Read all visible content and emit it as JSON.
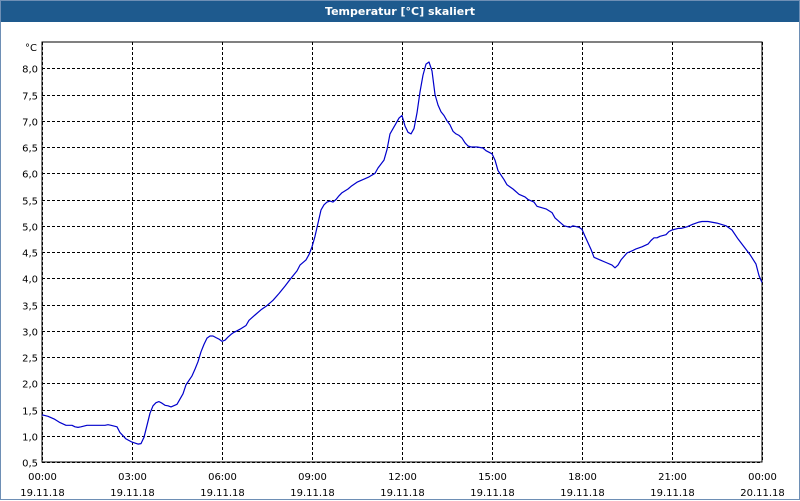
{
  "window": {
    "title": "Temperatur [°C] skaliert"
  },
  "chart_data": {
    "type": "line",
    "title": "Temperatur [°C] skaliert",
    "y_unit": "°C",
    "xlim": [
      0,
      24
    ],
    "ylim": [
      0.5,
      8.5
    ],
    "grid": true,
    "x_ticks": [
      {
        "t": 0,
        "time": "00:00",
        "date": "19.11.18"
      },
      {
        "t": 3,
        "time": "03:00",
        "date": "19.11.18"
      },
      {
        "t": 6,
        "time": "06:00",
        "date": "19.11.18"
      },
      {
        "t": 9,
        "time": "09:00",
        "date": "19.11.18"
      },
      {
        "t": 12,
        "time": "12:00",
        "date": "19.11.18"
      },
      {
        "t": 15,
        "time": "15:00",
        "date": "19.11.18"
      },
      {
        "t": 18,
        "time": "18:00",
        "date": "19.11.18"
      },
      {
        "t": 21,
        "time": "21:00",
        "date": "19.11.18"
      },
      {
        "t": 24,
        "time": "00:00",
        "date": "20.11.18"
      }
    ],
    "y_ticks": [
      {
        "v": 0.5,
        "label": "0,5"
      },
      {
        "v": 1.0,
        "label": "1,0"
      },
      {
        "v": 1.5,
        "label": "1,5"
      },
      {
        "v": 2.0,
        "label": "2,0"
      },
      {
        "v": 2.5,
        "label": "2,5"
      },
      {
        "v": 3.0,
        "label": "3,0"
      },
      {
        "v": 3.5,
        "label": "3,5"
      },
      {
        "v": 4.0,
        "label": "4,0"
      },
      {
        "v": 4.5,
        "label": "4,5"
      },
      {
        "v": 5.0,
        "label": "5,0"
      },
      {
        "v": 5.5,
        "label": "5,5"
      },
      {
        "v": 6.0,
        "label": "6,0"
      },
      {
        "v": 6.5,
        "label": "6,5"
      },
      {
        "v": 7.0,
        "label": "7,0"
      },
      {
        "v": 7.5,
        "label": "7,5"
      },
      {
        "v": 8.0,
        "label": "8,0"
      }
    ],
    "series": [
      {
        "color": "#0000cc",
        "points": [
          [
            0.0,
            1.4
          ],
          [
            0.2,
            1.37
          ],
          [
            0.4,
            1.32
          ],
          [
            0.6,
            1.25
          ],
          [
            0.8,
            1.2
          ],
          [
            1.0,
            1.2
          ],
          [
            1.1,
            1.17
          ],
          [
            1.2,
            1.16
          ],
          [
            1.3,
            1.17
          ],
          [
            1.5,
            1.2
          ],
          [
            1.7,
            1.2
          ],
          [
            1.9,
            1.2
          ],
          [
            2.1,
            1.2
          ],
          [
            2.2,
            1.21
          ],
          [
            2.3,
            1.2
          ],
          [
            2.5,
            1.17
          ],
          [
            2.6,
            1.06
          ],
          [
            2.8,
            0.94
          ],
          [
            3.0,
            0.88
          ],
          [
            3.2,
            0.84
          ],
          [
            3.3,
            0.85
          ],
          [
            3.4,
            0.97
          ],
          [
            3.5,
            1.2
          ],
          [
            3.6,
            1.43
          ],
          [
            3.7,
            1.57
          ],
          [
            3.8,
            1.63
          ],
          [
            3.9,
            1.65
          ],
          [
            4.0,
            1.62
          ],
          [
            4.1,
            1.58
          ],
          [
            4.2,
            1.57
          ],
          [
            4.3,
            1.55
          ],
          [
            4.5,
            1.6
          ],
          [
            4.7,
            1.8
          ],
          [
            4.8,
            1.97
          ],
          [
            5.0,
            2.14
          ],
          [
            5.1,
            2.27
          ],
          [
            5.2,
            2.41
          ],
          [
            5.3,
            2.6
          ],
          [
            5.4,
            2.74
          ],
          [
            5.5,
            2.86
          ],
          [
            5.6,
            2.9
          ],
          [
            5.7,
            2.9
          ],
          [
            5.8,
            2.87
          ],
          [
            5.9,
            2.84
          ],
          [
            6.0,
            2.8
          ],
          [
            6.1,
            2.82
          ],
          [
            6.2,
            2.88
          ],
          [
            6.3,
            2.93
          ],
          [
            6.4,
            2.97
          ],
          [
            6.5,
            3.0
          ],
          [
            6.6,
            3.03
          ],
          [
            6.8,
            3.1
          ],
          [
            6.9,
            3.2
          ],
          [
            7.1,
            3.3
          ],
          [
            7.3,
            3.4
          ],
          [
            7.5,
            3.48
          ],
          [
            7.7,
            3.58
          ],
          [
            7.9,
            3.71
          ],
          [
            8.1,
            3.85
          ],
          [
            8.3,
            4.0
          ],
          [
            8.5,
            4.14
          ],
          [
            8.6,
            4.25
          ],
          [
            8.8,
            4.35
          ],
          [
            8.9,
            4.45
          ],
          [
            9.0,
            4.6
          ],
          [
            9.1,
            4.8
          ],
          [
            9.2,
            5.05
          ],
          [
            9.3,
            5.3
          ],
          [
            9.4,
            5.4
          ],
          [
            9.5,
            5.45
          ],
          [
            9.6,
            5.47
          ],
          [
            9.7,
            5.45
          ],
          [
            9.8,
            5.5
          ],
          [
            9.9,
            5.57
          ],
          [
            10.0,
            5.63
          ],
          [
            10.2,
            5.7
          ],
          [
            10.3,
            5.75
          ],
          [
            10.5,
            5.83
          ],
          [
            10.7,
            5.88
          ],
          [
            10.9,
            5.93
          ],
          [
            11.1,
            6.0
          ],
          [
            11.2,
            6.1
          ],
          [
            11.4,
            6.25
          ],
          [
            11.5,
            6.45
          ],
          [
            11.6,
            6.75
          ],
          [
            11.8,
            6.95
          ],
          [
            11.9,
            7.05
          ],
          [
            12.0,
            7.1
          ],
          [
            12.1,
            6.9
          ],
          [
            12.2,
            6.78
          ],
          [
            12.3,
            6.75
          ],
          [
            12.4,
            6.85
          ],
          [
            12.5,
            7.15
          ],
          [
            12.6,
            7.55
          ],
          [
            12.7,
            7.87
          ],
          [
            12.8,
            8.08
          ],
          [
            12.9,
            8.12
          ],
          [
            13.0,
            7.95
          ],
          [
            13.1,
            7.5
          ],
          [
            13.2,
            7.3
          ],
          [
            13.3,
            7.17
          ],
          [
            13.4,
            7.1
          ],
          [
            13.5,
            7.0
          ],
          [
            13.6,
            6.92
          ],
          [
            13.7,
            6.8
          ],
          [
            13.8,
            6.75
          ],
          [
            13.9,
            6.72
          ],
          [
            14.0,
            6.67
          ],
          [
            14.1,
            6.58
          ],
          [
            14.2,
            6.52
          ],
          [
            14.3,
            6.5
          ],
          [
            14.5,
            6.5
          ],
          [
            14.7,
            6.48
          ],
          [
            14.8,
            6.43
          ],
          [
            15.0,
            6.37
          ],
          [
            15.1,
            6.25
          ],
          [
            15.2,
            6.05
          ],
          [
            15.4,
            5.88
          ],
          [
            15.5,
            5.78
          ],
          [
            15.7,
            5.7
          ],
          [
            15.9,
            5.6
          ],
          [
            16.1,
            5.55
          ],
          [
            16.2,
            5.5
          ],
          [
            16.4,
            5.45
          ],
          [
            16.5,
            5.37
          ],
          [
            16.8,
            5.32
          ],
          [
            17.0,
            5.25
          ],
          [
            17.1,
            5.15
          ],
          [
            17.4,
            5.0
          ],
          [
            17.6,
            4.97
          ],
          [
            17.7,
            5.0
          ],
          [
            17.9,
            4.97
          ],
          [
            18.0,
            4.93
          ],
          [
            18.1,
            4.8
          ],
          [
            18.3,
            4.55
          ],
          [
            18.4,
            4.4
          ],
          [
            18.6,
            4.35
          ],
          [
            18.8,
            4.3
          ],
          [
            19.0,
            4.25
          ],
          [
            19.1,
            4.2
          ],
          [
            19.2,
            4.25
          ],
          [
            19.3,
            4.35
          ],
          [
            19.5,
            4.48
          ],
          [
            19.7,
            4.53
          ],
          [
            19.8,
            4.56
          ],
          [
            20.0,
            4.6
          ],
          [
            20.2,
            4.65
          ],
          [
            20.3,
            4.72
          ],
          [
            20.4,
            4.77
          ],
          [
            20.5,
            4.77
          ],
          [
            20.6,
            4.8
          ],
          [
            20.8,
            4.83
          ],
          [
            20.9,
            4.89
          ],
          [
            21.0,
            4.92
          ],
          [
            21.2,
            4.95
          ],
          [
            21.3,
            4.95
          ],
          [
            21.5,
            4.98
          ],
          [
            21.7,
            5.03
          ],
          [
            21.9,
            5.07
          ],
          [
            22.0,
            5.08
          ],
          [
            22.2,
            5.08
          ],
          [
            22.5,
            5.05
          ],
          [
            22.8,
            5.0
          ],
          [
            23.0,
            4.92
          ],
          [
            23.2,
            4.75
          ],
          [
            23.4,
            4.6
          ],
          [
            23.6,
            4.45
          ],
          [
            23.8,
            4.27
          ],
          [
            23.9,
            4.05
          ],
          [
            24.0,
            3.92
          ]
        ]
      }
    ]
  }
}
